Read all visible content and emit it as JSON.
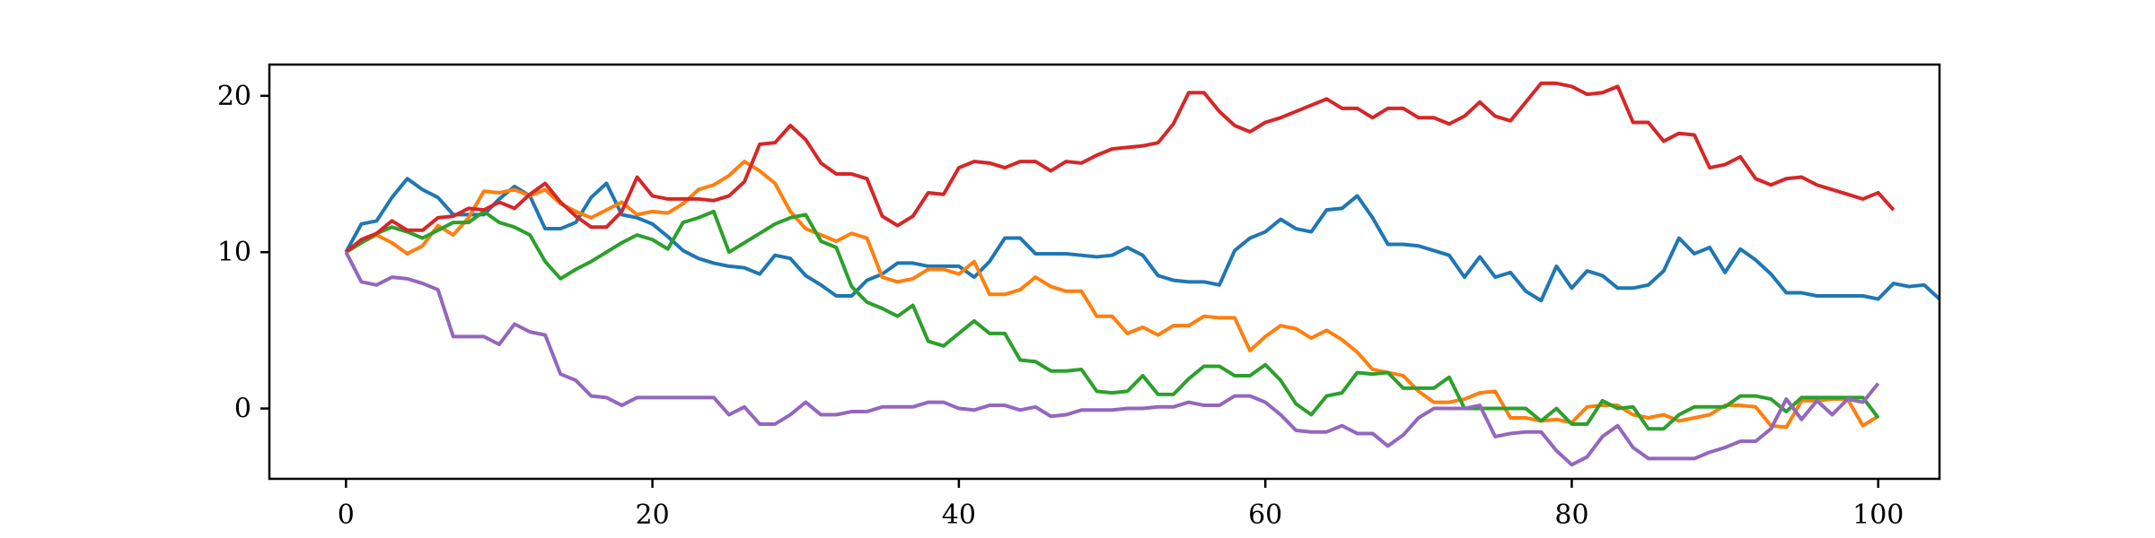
{
  "chart_data": {
    "type": "line",
    "title": "",
    "xlabel": "",
    "ylabel": "",
    "xlim": [
      -5,
      104
    ],
    "ylim": [
      -4.5,
      22
    ],
    "xticks": [
      0,
      20,
      40,
      60,
      80,
      100
    ],
    "yticks": [
      0,
      10,
      20
    ],
    "xtick_labels": [
      "0",
      "20",
      "40",
      "60",
      "80",
      "100"
    ],
    "ytick_labels": [
      "0",
      "10",
      "20"
    ],
    "grid": false,
    "legend": "none",
    "series": [
      {
        "color": "#1f77b4",
        "values": [
          10,
          11.8,
          12,
          13.5,
          14.7,
          14,
          13.5,
          12.4,
          12.4,
          12.4,
          13.4,
          14.2,
          13.6,
          11.5,
          11.5,
          11.9,
          13.5,
          14.4,
          12.4,
          12.2,
          11.8,
          11,
          10.1,
          9.6,
          9.3,
          9.1,
          9,
          8.6,
          9.8,
          9.6,
          8.5,
          7.9,
          7.2,
          7.2,
          8.2,
          8.6,
          9.3,
          9.3,
          9.1,
          9.1,
          9.1,
          8.4,
          9.4,
          10.9,
          10.9,
          9.9,
          9.9,
          9.9,
          9.8,
          9.7,
          9.8,
          10.3,
          9.8,
          8.5,
          8.2,
          8.1,
          8.1,
          7.9,
          10.1,
          10.9,
          11.3,
          12.1,
          11.5,
          11.3,
          12.7,
          12.8,
          13.6,
          12.2,
          10.5,
          10.5,
          10.4,
          10.1,
          9.8,
          8.4,
          9.7,
          8.4,
          8.7,
          7.5,
          6.9,
          9.1,
          7.7,
          8.8,
          8.5,
          7.7,
          7.7,
          7.9,
          8.8,
          10.9,
          9.9,
          10.3,
          8.7,
          10.2,
          9.5,
          8.6,
          7.4,
          7.4,
          7.2,
          7.2,
          7.2,
          7.2,
          7,
          8,
          7.8,
          7.9,
          7
        ]
      },
      {
        "color": "#ff7f0e",
        "values": [
          10,
          10.6,
          11.1,
          10.6,
          9.9,
          10.4,
          11.7,
          11.1,
          12.2,
          13.9,
          13.8,
          14,
          13.6,
          14,
          13.1,
          12.6,
          12.2,
          12.7,
          13.2,
          12.4,
          12.6,
          12.5,
          13.1,
          14,
          14.3,
          14.9,
          15.8,
          15.2,
          14.4,
          12.6,
          11.5,
          11.1,
          10.7,
          11.2,
          10.9,
          8.4,
          8.1,
          8.3,
          8.9,
          8.9,
          8.6,
          9.4,
          7.3,
          7.3,
          7.6,
          8.4,
          7.8,
          7.5,
          7.5,
          5.9,
          5.9,
          4.8,
          5.2,
          4.7,
          5.3,
          5.3,
          5.9,
          5.8,
          5.8,
          3.7,
          4.6,
          5.3,
          5.1,
          4.5,
          5,
          4.4,
          3.6,
          2.5,
          2.3,
          2.1,
          1.1,
          0.4,
          0.4,
          0.6,
          1,
          1.1,
          -0.6,
          -0.6,
          -0.8,
          -0.7,
          -0.9,
          0.1,
          0.2,
          0.2,
          -0.4,
          -0.6,
          -0.4,
          -0.8,
          -0.6,
          -0.4,
          0.2,
          0.2,
          0.1,
          -1.1,
          -1.2,
          0.5,
          0.5,
          0.6,
          0.6,
          -1.1,
          -0.5
        ]
      },
      {
        "color": "#2ca02c",
        "values": [
          10,
          10.6,
          11.2,
          11.6,
          11.3,
          10.9,
          11.4,
          11.9,
          11.9,
          12.6,
          11.9,
          11.6,
          11.1,
          9.4,
          8.3,
          8.9,
          9.4,
          10,
          10.6,
          11.1,
          10.8,
          10.2,
          11.9,
          12.2,
          12.6,
          10,
          10.6,
          11.2,
          11.8,
          12.2,
          12.4,
          10.7,
          10.3,
          7.8,
          6.8,
          6.4,
          5.9,
          6.6,
          4.3,
          4,
          4.8,
          5.6,
          4.8,
          4.8,
          3.1,
          3,
          2.4,
          2.4,
          2.5,
          1.1,
          1,
          1.1,
          2.1,
          0.9,
          0.9,
          1.9,
          2.7,
          2.7,
          2.1,
          2.1,
          2.8,
          1.8,
          0.3,
          -0.4,
          0.8,
          1,
          2.3,
          2.2,
          2.3,
          1.3,
          1.3,
          1.3,
          2,
          0,
          0,
          0,
          0,
          0,
          -0.8,
          0,
          -1,
          -1,
          0.5,
          0,
          0.1,
          -1.3,
          -1.3,
          -0.4,
          0.1,
          0.1,
          0.1,
          0.8,
          0.8,
          0.6,
          -0.2,
          0.7,
          0.7,
          0.7,
          0.7,
          0.7,
          -0.6
        ]
      },
      {
        "color": "#d62728",
        "values": [
          10,
          10.8,
          11.2,
          12,
          11.4,
          11.4,
          12.2,
          12.3,
          12.8,
          12.7,
          13.2,
          12.8,
          13.7,
          14.4,
          13.2,
          12.3,
          11.6,
          11.6,
          12.6,
          14.8,
          13.6,
          13.4,
          13.4,
          13.4,
          13.3,
          13.6,
          14.5,
          16.9,
          17,
          18.1,
          17.2,
          15.7,
          15,
          15,
          14.7,
          12.3,
          11.7,
          12.3,
          13.8,
          13.7,
          15.4,
          15.8,
          15.7,
          15.4,
          15.8,
          15.8,
          15.2,
          15.8,
          15.7,
          16.2,
          16.6,
          16.7,
          16.8,
          17,
          18.2,
          20.2,
          20.2,
          19,
          18.1,
          17.7,
          18.3,
          18.6,
          19,
          19.4,
          19.8,
          19.2,
          19.2,
          18.6,
          19.2,
          19.2,
          18.6,
          18.6,
          18.2,
          18.7,
          19.6,
          18.7,
          18.4,
          19.6,
          20.8,
          20.8,
          20.6,
          20.1,
          20.2,
          20.6,
          18.3,
          18.3,
          17.1,
          17.6,
          17.5,
          15.4,
          15.6,
          16.1,
          14.7,
          14.3,
          14.7,
          14.8,
          14.3,
          14,
          13.7,
          13.4,
          13.8,
          12.7
        ]
      },
      {
        "color": "#9467bd",
        "values": [
          10,
          8.1,
          7.9,
          8.4,
          8.3,
          8,
          7.6,
          4.6,
          4.6,
          4.6,
          4.1,
          5.4,
          4.9,
          4.7,
          2.2,
          1.8,
          0.8,
          0.7,
          0.2,
          0.7,
          0.7,
          0.7,
          0.7,
          0.7,
          0.7,
          -0.4,
          0.1,
          -1,
          -1,
          -0.4,
          0.4,
          -0.4,
          -0.4,
          -0.2,
          -0.2,
          0.1,
          0.1,
          0.1,
          0.4,
          0.4,
          0,
          -0.1,
          0.2,
          0.2,
          -0.1,
          0.1,
          -0.5,
          -0.4,
          -0.1,
          -0.1,
          -0.1,
          0,
          0,
          0.1,
          0.1,
          0.4,
          0.2,
          0.2,
          0.8,
          0.8,
          0.4,
          -0.4,
          -1.4,
          -1.5,
          -1.5,
          -1.1,
          -1.6,
          -1.6,
          -2.4,
          -1.7,
          -0.6,
          0,
          0,
          0,
          0.2,
          -1.8,
          -1.6,
          -1.5,
          -1.5,
          -2.7,
          -3.6,
          -3.1,
          -1.8,
          -1.1,
          -2.5,
          -3.2,
          -3.2,
          -3.2,
          -3.2,
          -2.8,
          -2.5,
          -2.1,
          -2.1,
          -1.3,
          0.6,
          -0.7,
          0.5,
          -0.4,
          0.6,
          0.4,
          1.6
        ]
      }
    ]
  }
}
